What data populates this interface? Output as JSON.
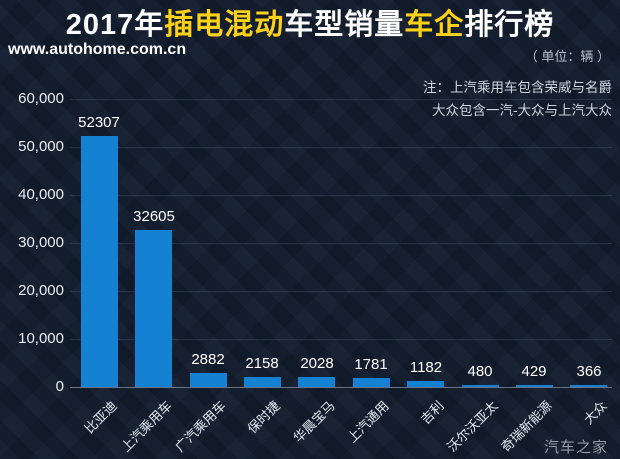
{
  "page": {
    "watermark": "www.autohome.com.cn",
    "unit_label": "（ 单位：辆 ）",
    "note_line1": "注：上汽乘用车包含荣威与名爵",
    "note_line2": "大众包含一汽-大众与上汽大众",
    "footer_logo": "汽车之家"
  },
  "title": {
    "full": "2017年插电混动车型销量车企排行榜",
    "segments": [
      {
        "text": "2017年",
        "highlight": false
      },
      {
        "text": "插电混动",
        "highlight": true
      },
      {
        "text": "车型销量",
        "highlight": false
      },
      {
        "text": "车企",
        "highlight": true
      },
      {
        "text": "排行榜",
        "highlight": false
      }
    ]
  },
  "colors": {
    "background": "#111c2d",
    "bar": "#1581d2",
    "title_highlight": "#ffd118",
    "gridline": "rgba(150,175,210,0.16)",
    "axis_line": "#68717f"
  },
  "chart_data": {
    "type": "bar",
    "title": "2017年插电混动车型销量车企排行榜",
    "unit": "辆",
    "categories": [
      "比亚迪",
      "上汽乘用车",
      "广汽乘用车",
      "保时捷",
      "华晨宝马",
      "上汽通用",
      "吉利",
      "沃尔沃亚太",
      "奇瑞新能源",
      "大众"
    ],
    "values": [
      52307,
      32605,
      2882,
      2158,
      2028,
      1781,
      1182,
      480,
      429,
      366
    ],
    "xlabel": "",
    "ylabel": "",
    "ylim": [
      0,
      60000
    ],
    "yticks": [
      0,
      10000,
      20000,
      30000,
      40000,
      50000,
      60000
    ],
    "ytick_labels": [
      "0",
      "10,000",
      "20,000",
      "30,000",
      "40,000",
      "50,000",
      "60,000"
    ],
    "grid": true,
    "value_labels": true,
    "legend": false
  }
}
